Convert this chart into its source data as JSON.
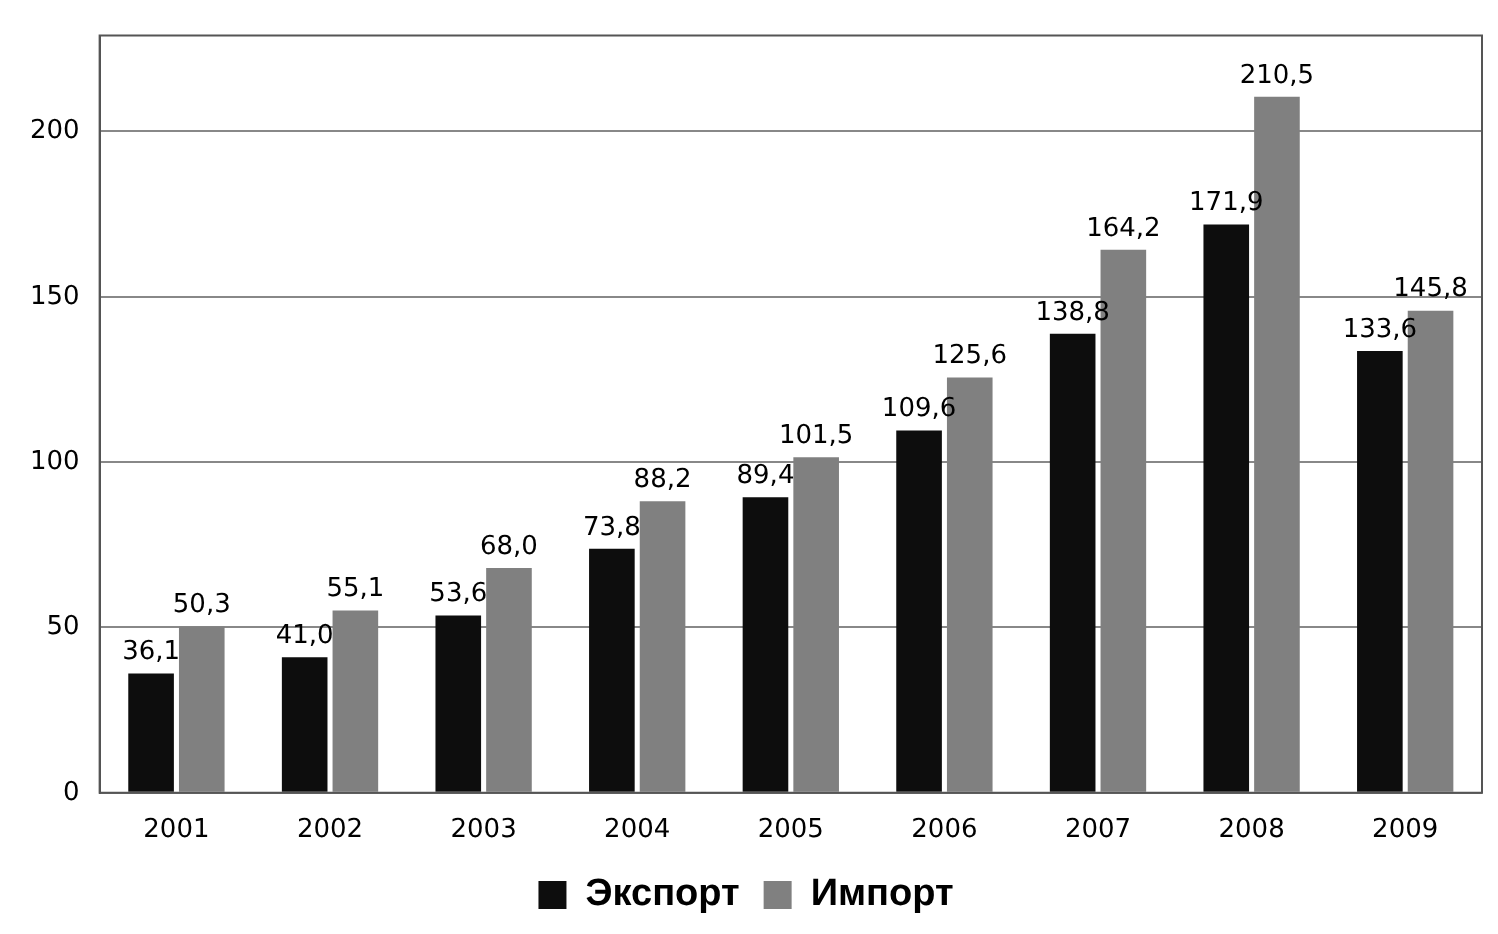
{
  "chart_data": {
    "type": "bar",
    "categories": [
      "2001",
      "2002",
      "2003",
      "2004",
      "2005",
      "2006",
      "2007",
      "2008",
      "2009"
    ],
    "series": [
      {
        "name": "Экспорт",
        "color": "#0d0d0d",
        "values": [
          36.1,
          41.0,
          53.6,
          73.8,
          89.4,
          109.6,
          138.8,
          171.9,
          133.6
        ],
        "value_labels": [
          "36,1",
          "41,0",
          "53,6",
          "73,8",
          "89,4",
          "109,6",
          "138,8",
          "171,9",
          "133,6"
        ]
      },
      {
        "name": "Импорт",
        "color": "#808080",
        "values": [
          50.3,
          55.1,
          68.0,
          88.2,
          101.5,
          125.6,
          164.2,
          210.5,
          145.8
        ],
        "value_labels": [
          "50,3",
          "55,1",
          "68,0",
          "88,2",
          "101,5",
          "125,6",
          "164,2",
          "210,5",
          "145,8"
        ]
      }
    ],
    "ylim": [
      0,
      229
    ],
    "yticks": [
      0,
      50,
      100,
      150,
      200
    ],
    "grid": "y",
    "legend": "bottom"
  }
}
